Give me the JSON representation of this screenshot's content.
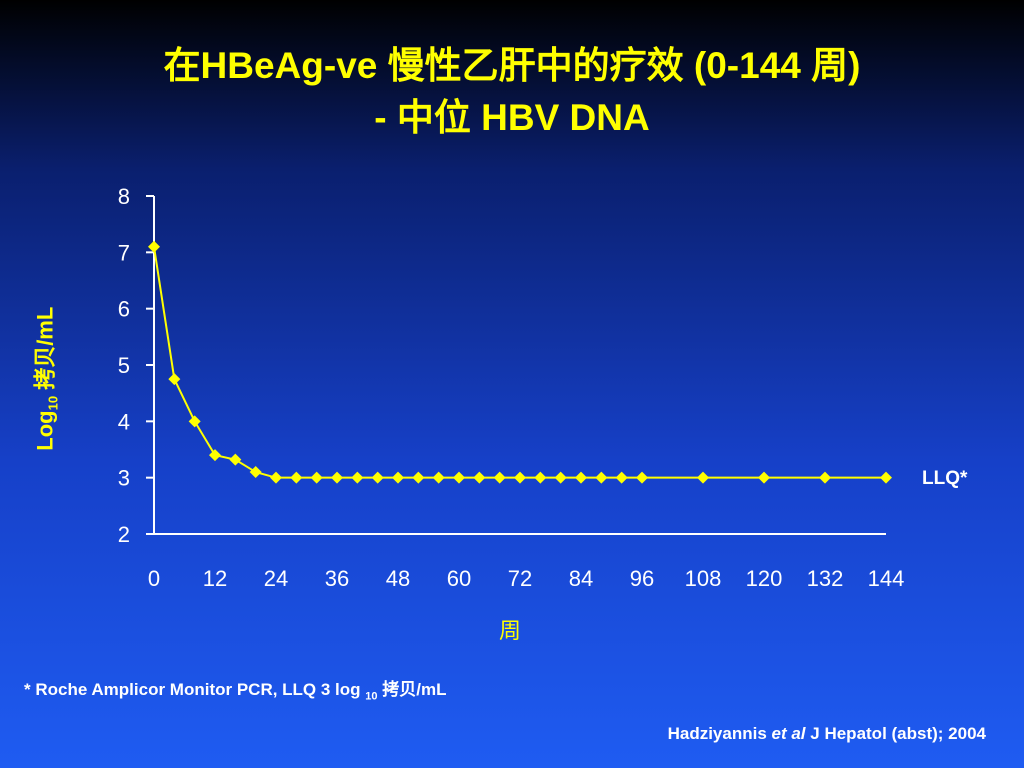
{
  "title": {
    "line1_pre": "在",
    "line1_main": "HBeAg-ve 慢性乙肝中的疗效 (0-144 周)",
    "line2": "- 中位 HBV DNA"
  },
  "axis": {
    "y_label_main": "Log",
    "y_label_sub": "10",
    "y_label_unit": " 拷贝/mL",
    "x_label": "周"
  },
  "llq_label": "LLQ*",
  "footnote": {
    "pre": "* Roche Amplicor Monitor PCR, LLQ 3 log ",
    "sub": "10",
    "post": " 拷贝/mL"
  },
  "citation": {
    "author": "Hadziyannis ",
    "etal": "et al",
    "rest": " J Hepatol (abst); 2004"
  },
  "colors": {
    "title": "#ffff00",
    "series": "#ffff00",
    "axis": "#ffffff",
    "text": "#ffffff"
  },
  "chart_data": {
    "type": "line",
    "xlabel": "周",
    "ylabel": "Log10 拷贝/mL",
    "xlim": [
      0,
      144
    ],
    "ylim": [
      2,
      8
    ],
    "x_ticks": [
      0,
      12,
      24,
      36,
      48,
      60,
      72,
      84,
      96,
      108,
      120,
      132,
      144
    ],
    "y_ticks": [
      2,
      3,
      4,
      5,
      6,
      7,
      8
    ],
    "marker": "diamond",
    "series": [
      {
        "x": [
          0,
          4,
          8,
          12,
          16,
          20,
          24,
          28,
          32,
          36,
          40,
          44,
          48,
          52,
          56,
          60,
          64,
          68,
          72,
          76,
          80,
          84,
          88,
          92,
          96,
          108,
          120,
          132,
          144
        ],
        "y": [
          7.1,
          4.75,
          4.0,
          3.4,
          3.32,
          3.1,
          3.0,
          3.0,
          3.0,
          3.0,
          3.0,
          3.0,
          3.0,
          3.0,
          3.0,
          3.0,
          3.0,
          3.0,
          3.0,
          3.0,
          3.0,
          3.0,
          3.0,
          3.0,
          3.0,
          3.0,
          3.0,
          3.0,
          3.0
        ]
      }
    ]
  }
}
